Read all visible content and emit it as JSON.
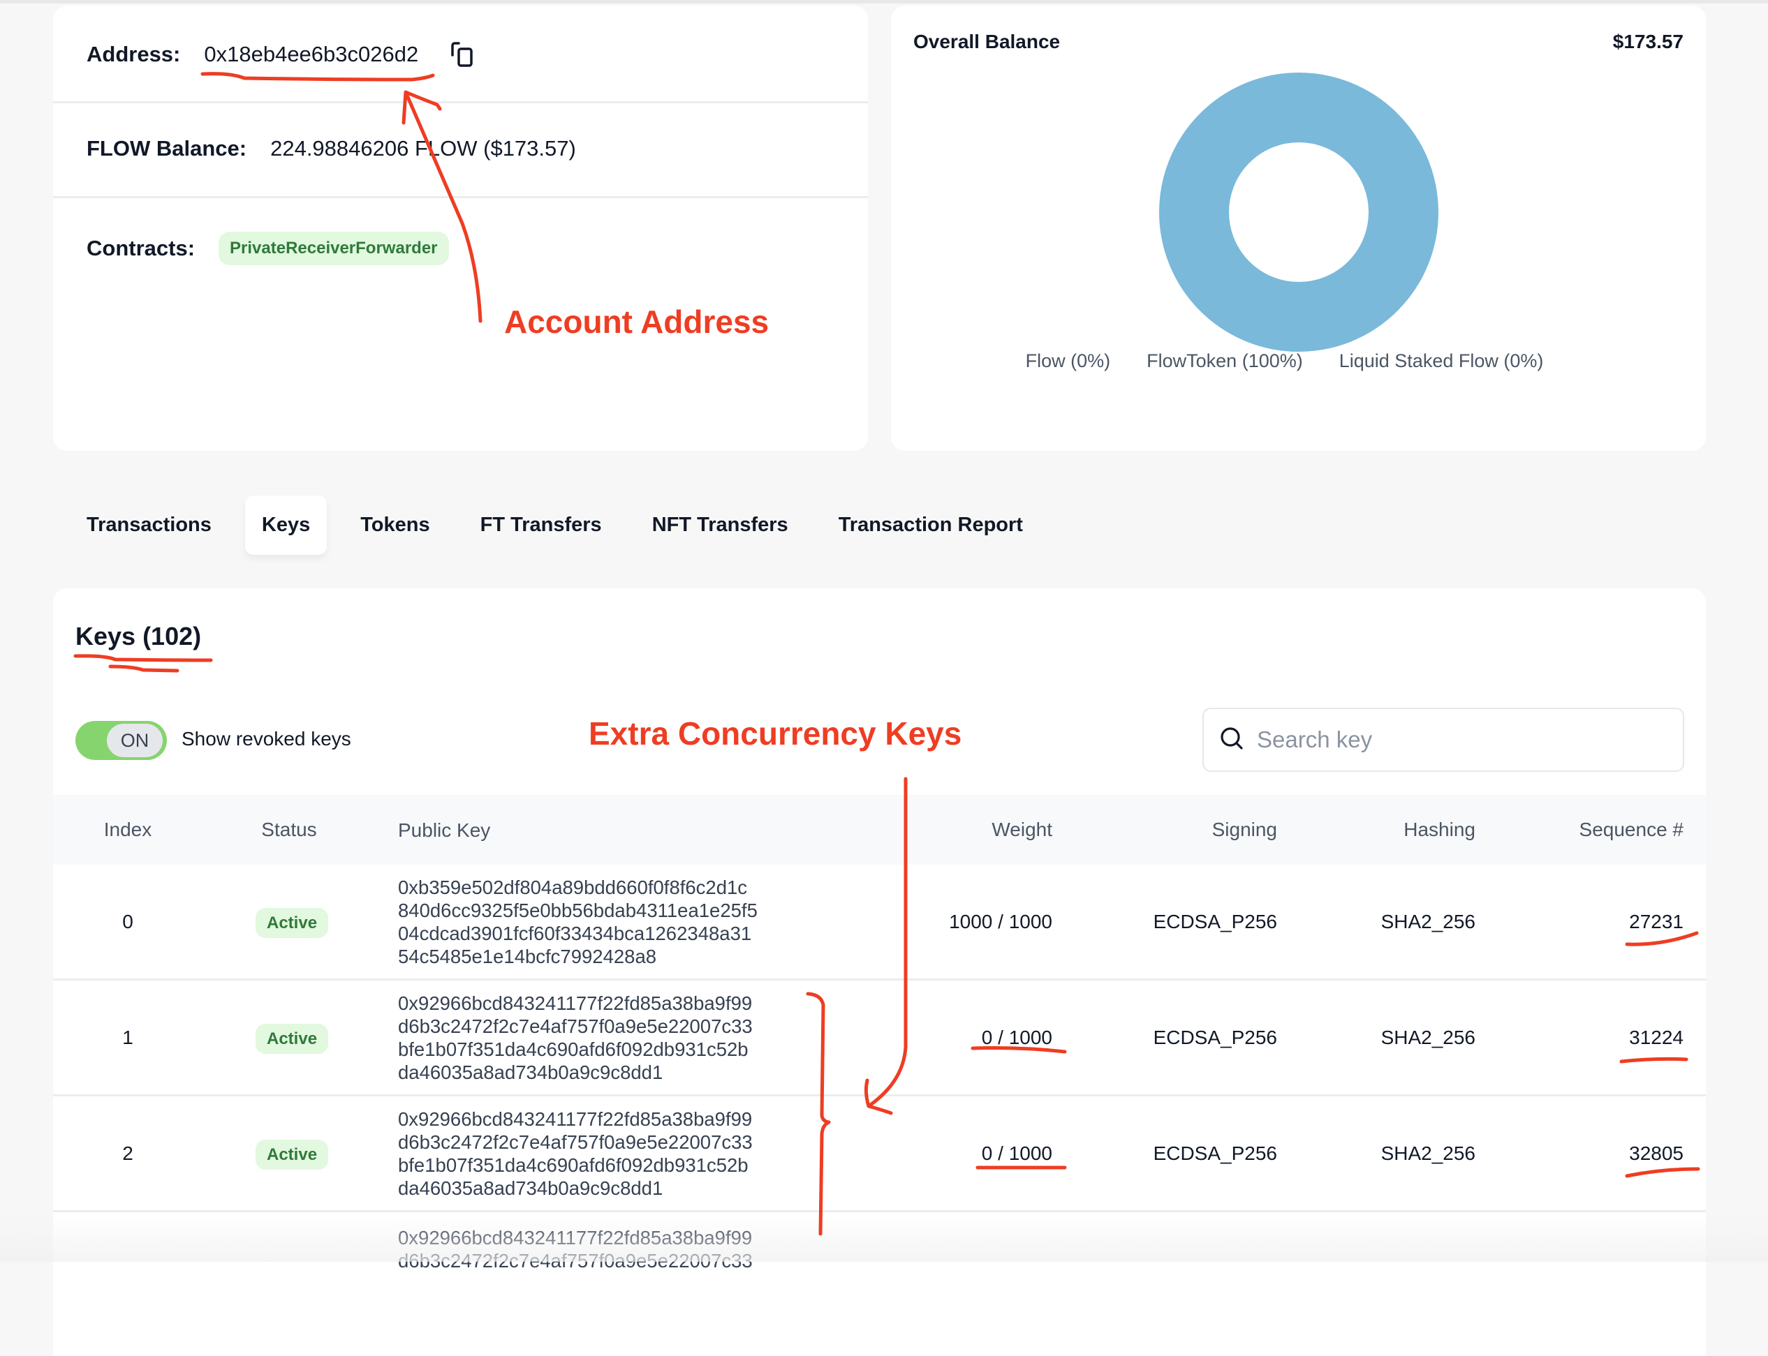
{
  "account": {
    "address_label": "Address:",
    "address": "0x18eb4ee6b3c026d2",
    "balance_label": "FLOW Balance:",
    "balance": "224.98846206 FLOW ($173.57)",
    "contracts_label": "Contracts:",
    "contracts": [
      "PrivateReceiverForwarder"
    ]
  },
  "balance_card": {
    "title": "Overall Balance",
    "total": "$173.57"
  },
  "chart_data": {
    "type": "pie",
    "donut": true,
    "slices": [
      {
        "label": "Flow (0%)",
        "value": 0
      },
      {
        "label": "FlowToken (100%)",
        "value": 100
      },
      {
        "label": "Liquid Staked Flow (0%)",
        "value": 0
      }
    ],
    "color": "#7ab9da",
    "legend": "bottom"
  },
  "tabs": [
    {
      "label": "Transactions"
    },
    {
      "label": "Keys",
      "active": true
    },
    {
      "label": "Tokens"
    },
    {
      "label": "FT Transfers"
    },
    {
      "label": "NFT Transfers"
    },
    {
      "label": "Transaction Report"
    }
  ],
  "keys": {
    "title": "Keys (102)",
    "toggle_state": "ON",
    "toggle_label": "Show revoked keys",
    "search_placeholder": "Search key",
    "columns": [
      "Index",
      "Status",
      "Public Key",
      "Weight",
      "Signing",
      "Hashing",
      "Sequence #"
    ],
    "rows": [
      {
        "index": "0",
        "status": "Active",
        "key": [
          "0xb359e502df804a89bdd660f0f8f6c2d1c",
          "840d6cc9325f5e0bb56bdab4311ea1e25f5",
          "04cdcad3901fcf60f33434bca1262348a31",
          "54c5485e1e14bcfc7992428a8"
        ],
        "weight": "1000 / 1000",
        "signing": "ECDSA_P256",
        "hashing": "SHA2_256",
        "sequence": "27231"
      },
      {
        "index": "1",
        "status": "Active",
        "key": [
          "0x92966bcd843241177f22fd85a38ba9f99",
          "d6b3c2472f2c7e4af757f0a9e5e22007c33",
          "bfe1b07f351da4c690afd6f092db931c52b",
          "da46035a8ad734b0a9c9c8dd1"
        ],
        "weight": "0 / 1000",
        "signing": "ECDSA_P256",
        "hashing": "SHA2_256",
        "sequence": "31224"
      },
      {
        "index": "2",
        "status": "Active",
        "key": [
          "0x92966bcd843241177f22fd85a38ba9f99",
          "d6b3c2472f2c7e4af757f0a9e5e22007c33",
          "bfe1b07f351da4c690afd6f092db931c52b",
          "da46035a8ad734b0a9c9c8dd1"
        ],
        "weight": "0 / 1000",
        "signing": "ECDSA_P256",
        "hashing": "SHA2_256",
        "sequence": "32805"
      },
      {
        "key": [
          "0x92966bcd843241177f22fd85a38ba9f99",
          "d6b3c2472f2c7e4af757f0a9e5e22007c33"
        ]
      }
    ]
  },
  "annotations": {
    "account_address": "Account Address",
    "extra_keys": "Extra Concurrency Keys",
    "color": "#ee3d23"
  }
}
